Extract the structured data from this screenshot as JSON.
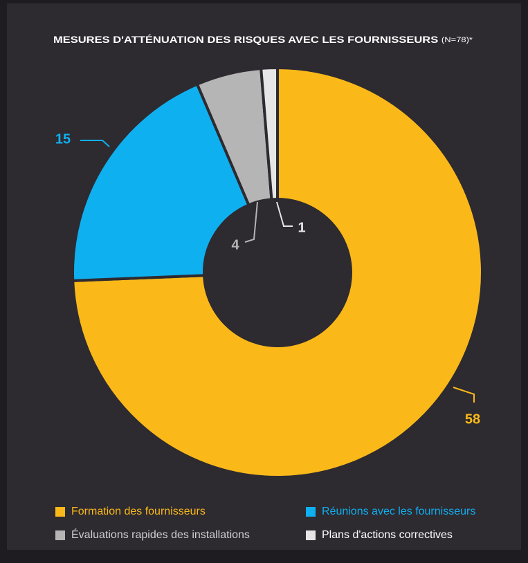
{
  "chart_data": {
    "type": "pie",
    "donut": true,
    "title": "MESURES D'ATTÉNUATION DES RISQUES AVEC LES FOURNISSEURS",
    "note": "(N=78)*",
    "categories": [
      "Formation des fournisseurs",
      "Réunions avec les fournisseurs",
      "Évaluations rapides des installations",
      "Plans d'actions correctives"
    ],
    "values": [
      58,
      15,
      4,
      1
    ],
    "colors": [
      "#fbb919",
      "#0fb0ef",
      "#b5b5b5",
      "#e6e6e6"
    ]
  }
}
